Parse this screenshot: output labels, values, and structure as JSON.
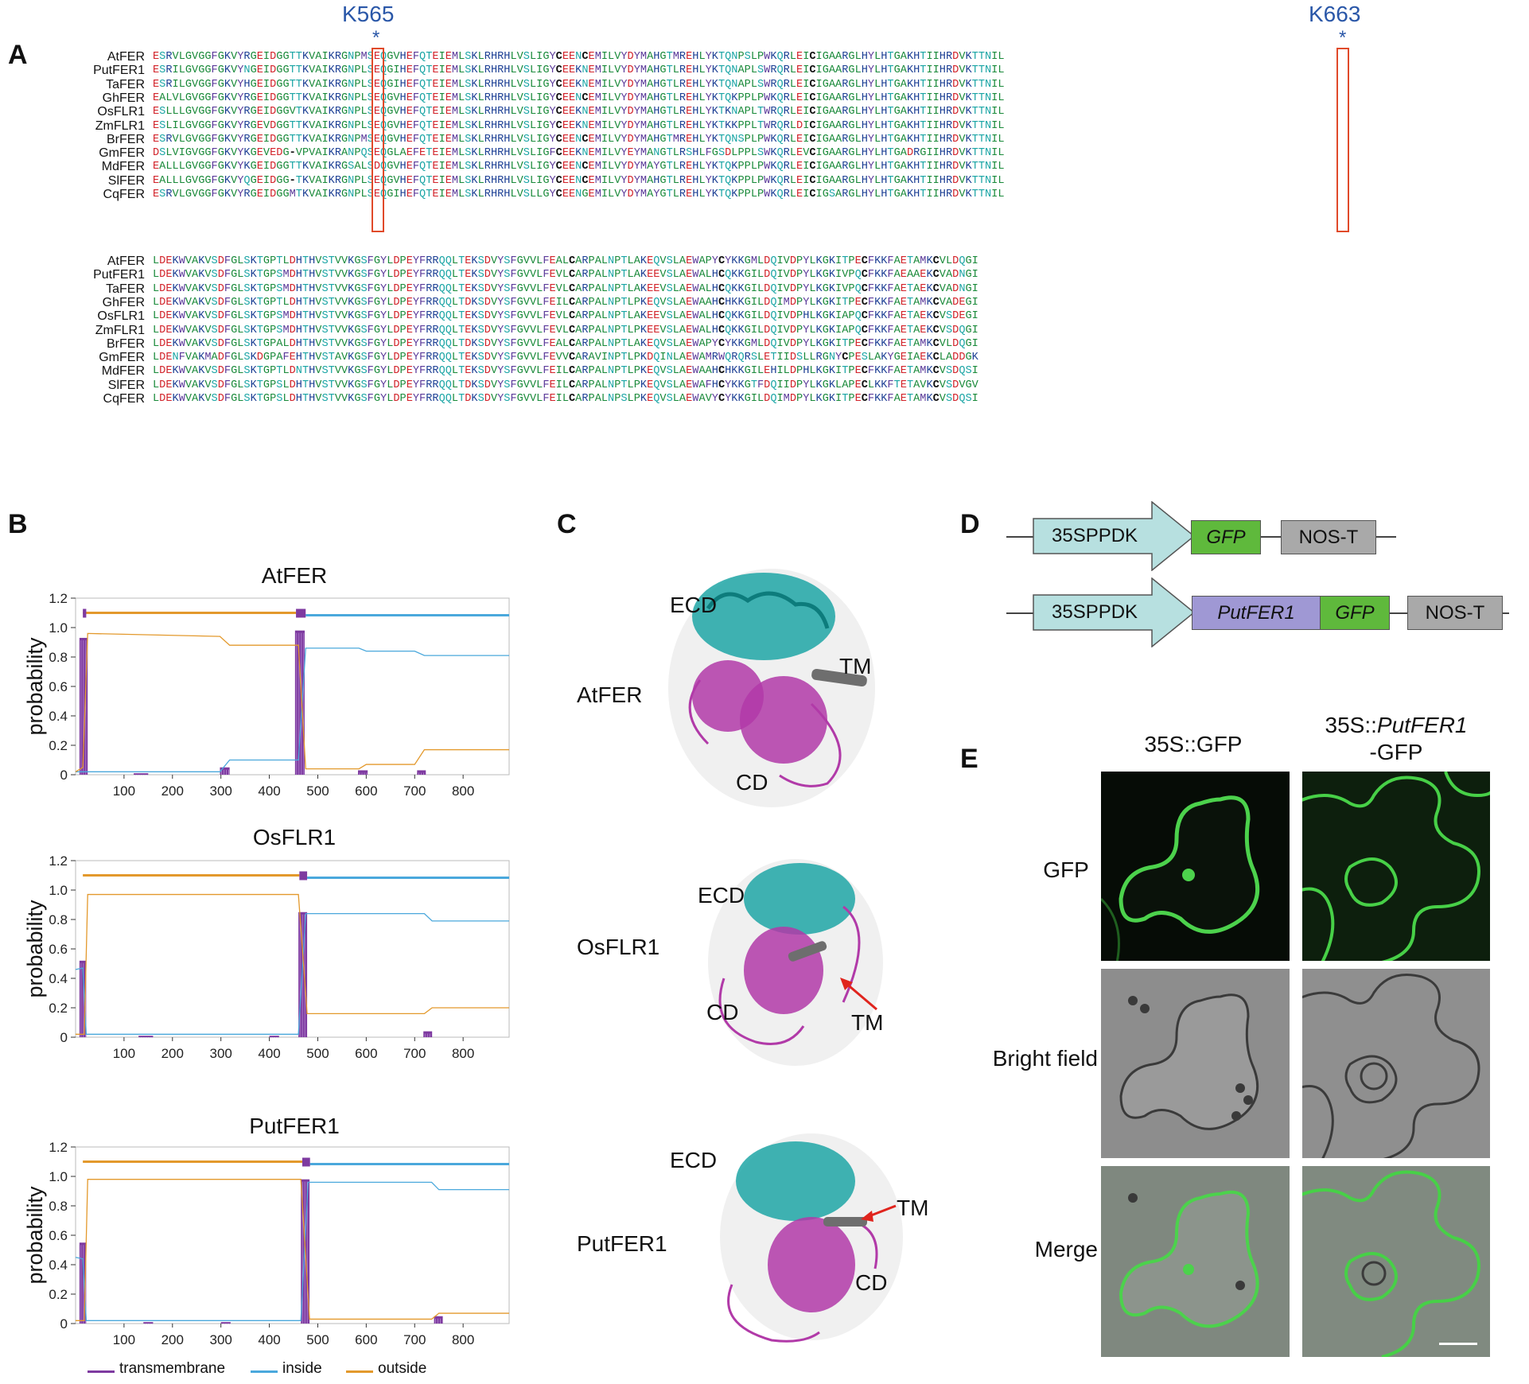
{
  "panels": {
    "A": "A",
    "B": "B",
    "C": "C",
    "D": "D",
    "E": "E"
  },
  "alignment": {
    "sites": [
      {
        "label": "K565",
        "star": "*"
      },
      {
        "label": "K663",
        "star": "*"
      }
    ],
    "block1": [
      {
        "name": "AtFER",
        "seq": "ESRVLGVGGFGKVYRGEIDGGTTKVAIKRGNPMSEQGVHEFQTEIEMLSKLRHRHLVSLIGYCEENCEMILVYDYMAHGTMREHLYKTQNPSLPWKQRLEICIGAARGLHYLHTGAKHTIIHRDVKTTNIL"
      },
      {
        "name": "PutFER1",
        "seq": "ESRILGVGGFGKVYNGEIDGGTTKVAIKRGNPLSEQGIHEFQTEIEMLSKLRHRHLVSLIGYCEEKNEMILVYDYMAHGTLREHLYKTQNAPLSWRQRLEICIGAARGLHYLHTGAKHTIIHRDVKTTNIL"
      },
      {
        "name": "TaFER",
        "seq": "ESRILGVGGFGKVYHGEIDGGTTKVAIKRGNPLSEQGIHEFQTEIEMLSKLRHRHLVSLIGYCEEKNEMILVYDYMAHGTLREHLYKTQNAPLSWRQRLEICIGAARGLHYLHTGAKHTIIHRDVKTTNIL"
      },
      {
        "name": "GhFER",
        "seq": "EALVLGVGGFGKVYRGEIDGGTTKVAIKRGNPLSEQGVHEFQTEIEMLSKLRHRHLVSLIGYCEENCEMILVYDYMAHGTLREHLYKTQKPPLPWKQRLEICIGAARGLHYLHTGAKHTIIHRDVKTTNIL"
      },
      {
        "name": "OsFLR1",
        "seq": "ESLLLGVGGFGKVYRGEIDGGVTKVAIKRGNPLSEQGVHEFQTEIEMLSKLRHRHLVSLIGYCEEKNEMILVYDYMAHGTLREHLYKTKNAPLTWRQRLEICIGAARGLHYLHTGAKHTIIHRDVKTTNIL"
      },
      {
        "name": "ZmFLR1",
        "seq": "ESLILGVGGFGKVYRGEVDGGTTKVAIKRGNPLSEQGVHEFQTEIEMLSKLRHRHLVSLIGYCEEKNEMILVYDYMAHGTLREHLYKTKKPPLTWRQRLDICIGAARGLHYLHTGAKHTIIHRDVKTTNIL"
      },
      {
        "name": "BrFER",
        "seq": "ESRVLGVGGFGKVYRGEIDGGTTKVAIKRGNPMSEQGVHEFQTEIEMLSKLRHRHLVSLIGYCEENCEMILVYDYMAHGTMREHLYKTQNSPLPWKQRLEICIGAARGLHYLHTGAKHTIIHRDVKTTNIL"
      },
      {
        "name": "GmFER",
        "seq": "DSLVIGVGGFGKVYKGEVEDG-VPVAIKRANPQSEQGLAEFETEIEMLSKLRHRHLVSLIGFCEEKNEMILVYEYMANGTLRSHLFGSDLPPLSWKQRLEVCIGAARGLHYLHTGADRGIIHRDVKTTNIL"
      },
      {
        "name": "MdFER",
        "seq": "EALLLGVGGFGKVYKGEIDGGTTKVAIKRGSALSDQGVHEFQTEIEMLSKLRHRHLVSLIGYCEENCEMILVYDYMAYGTLREHLYKTQKPPLPWKQRLEICIGAARGLHYLHTGAKHTIIHRDVKTTNIL"
      },
      {
        "name": "SlFER",
        "seq": "EALLLGVGGFGKVYQGEIDGG-TKVAIKRGNPLSEQGVHEFQTEIEMLSKLRHRHLVSLIGYCEENCEMILVYDYMAHGTLREHLYKTQKPPLPWKQRLEICIGAARGLHYLHTGAKHTIIHRDVKTTNIL"
      },
      {
        "name": "CqFER",
        "seq": "ESRVLGVGGFGKVYRGEIDGGMTKVAIKRGNPLSEQGIHEFQTEIEMLSKLRHRHLVSLLGYCEENGEMILVYDYMAYGTLREHLYKTQKPPLPWKQRLEICIGSARGLHYLHTGAKHTIIHRDVKTTNIL"
      }
    ],
    "block2": [
      {
        "name": "AtFER",
        "seq": "LDEKWVAKVSDFGLSKTGPTLDHTHVSTVVKGSFGYLDPEYFRRQQLTEKSDVYSFGVVLFEALCARPALNPTLAKEQVSLAEWAPYCYKKGMLDQIVDPYLKGKITPECFKKFAETAMKCVLDQGI"
      },
      {
        "name": "PutFER1",
        "seq": "LDEKWVAKVSDFGLSKTGPSMDHTHVSTVVKGSFGYLDPEYFRRQQLTEKSDVYSFGVVLFEVLCARPALNPTLAKEEVSLAEWALHCQKKGILDQIVDPYLKGKIVPQCFKKFAEAAEKCVADNGI"
      },
      {
        "name": "TaFER",
        "seq": "LDEKWVAKVSDFGLSKTGPSMDHTHVSTVVKGSFGYLDPEYFRRQQLTEKSDVYSFGVVLFEVLCARPALNPTLAKEEVSLAEWALHCQKKGILDQIVDPYLKGKIVPQCFKKFAETAEKCVADNGI"
      },
      {
        "name": "GhFER",
        "seq": "LDEKWVAKVSDFGLSKTGPTLDHTHVSTVVKGSFGYLDPEYFRRQQLTDKSDVYSFGVVLFEILCARPALNPTLPKEQVSLAEWAAHCHKKGILDQIMDPYLKGKITPECFKKFAETAMKCVADEGI"
      },
      {
        "name": "OsFLR1",
        "seq": "LDEKWVAKVSDFGLSKTGPSMDHTHVSTVVKGSFGYLDPEYFRRQQLTEKSDVYSFGVVLFEVLCARPALNPTLAKEEVSLAEWALHCQKKGILDQIVDPHLKGKIAPQCFKKFAETAEKCVSDEGI"
      },
      {
        "name": "ZmFLR1",
        "seq": "LDEKWVAKVSDFGLSKTGPSMDHTHVSTVVKGSFGYLDPEYFRRQQLTEKSDVYSFGVVLFEVLCARPALNPTLPKEEVSLAEWALHCQKKGILDQIVDPYLKGKIAPQCFKKFAETAEKCVSDQGI"
      },
      {
        "name": "BrFER",
        "seq": "LDEKWVAKVSDFGLSKTGPALDHTHVSTVVKGSFGYLDPEYFRRQQLTDKSDVYSFGVVLFEALCARPALNPTLAKEQVSLAEWAPYCYKKGMLDQIVDPYLKGKITPECFKKFAETAMKCVLDQGI"
      },
      {
        "name": "GmFER",
        "seq": "LDENFVAKMADFGLSKDGPAFEHTHVSTAVKGSFGYLDPEYFRRQQLTEKSDVYSFGVVLFEVVCARAVINPTLPKDQINLAEWAMRWQRQRSLETIIDSLLRGNYCPESLAKYGEIAEKCLADDGK"
      },
      {
        "name": "MdFER",
        "seq": "LDEKWVAKVSDFGLSKTGPTLDNTHVSTVVKGSFGYLDPEYFRRQQLTEKSDVYSFGVVLFEILCARPALNPTLPKEQVSLAEWAAHCHKKGILEHILDPHLKGKITPECFKKFAETAMKCVSDQSI"
      },
      {
        "name": "SlFER",
        "seq": "LDEKWVAKVSDFGLSKTGPSLDHTHVSTVVKGSFGYLDPEYFRRQQLTDKSDVYSFGVVLFEILCARPALNPTLPKEQVSLAEWAFHCYKKGTFDQIIDPYLKGKLAPECLKKFTETAVKCVSDVGV"
      },
      {
        "name": "CqFER",
        "seq": "LDEKWVAKVSDFGLSKTGPSLDHTHVSTVVKGSFGYLDPEYFRRQQLTDKSDVYSFGVVLFEILCARPALNPSLPKEQVSLAEWAVYCYKKGILDQIMDPYLKGKITPECFKKFAETAMKCVSDQSI"
      }
    ]
  },
  "panel_b": {
    "chart_data": [
      {
        "type": "line",
        "title": "AtFER",
        "ylabel": "probability",
        "ylim": [
          0,
          1.2
        ],
        "xticks": [
          100,
          200,
          300,
          400,
          500,
          600,
          700,
          800
        ],
        "yticks": [
          0,
          0.2,
          0.4,
          0.6,
          0.8,
          1.0,
          1.2
        ],
        "xlim": [
          0,
          895
        ],
        "tm_bars": [
          [
            8,
            25,
            0.93
          ],
          [
            453,
            473,
            0.98
          ],
          [
            298,
            318,
            0.05
          ],
          [
            583,
            603,
            0.03
          ],
          [
            705,
            723,
            0.03
          ],
          [
            120,
            150,
            0.01
          ]
        ],
        "tm_segments": [
          [
            15,
            22
          ],
          [
            455,
            475
          ]
        ],
        "inside_line": [
          [
            0,
            0.02
          ],
          [
            298,
            0.02
          ],
          [
            318,
            0.1
          ],
          [
            460,
            0.1
          ],
          [
            475,
            0.86
          ],
          [
            585,
            0.86
          ],
          [
            600,
            0.84
          ],
          [
            700,
            0.84
          ],
          [
            720,
            0.81
          ],
          [
            895,
            0.81
          ]
        ],
        "outside_line": [
          [
            0,
            0.02
          ],
          [
            15,
            0.05
          ],
          [
            25,
            0.96
          ],
          [
            298,
            0.94
          ],
          [
            318,
            0.88
          ],
          [
            460,
            0.88
          ],
          [
            475,
            0.04
          ],
          [
            585,
            0.04
          ],
          [
            600,
            0.07
          ],
          [
            700,
            0.07
          ],
          [
            720,
            0.17
          ],
          [
            895,
            0.17
          ]
        ]
      },
      {
        "type": "line",
        "title": "OsFLR1",
        "ylabel": "probability",
        "ylim": [
          0,
          1.2
        ],
        "xticks": [
          100,
          200,
          300,
          400,
          500,
          600,
          700,
          800
        ],
        "yticks": [
          0,
          0.2,
          0.4,
          0.6,
          0.8,
          1.0,
          1.2
        ],
        "xlim": [
          0,
          895
        ],
        "tm_bars": [
          [
            8,
            22,
            0.52
          ],
          [
            460,
            478,
            0.85
          ],
          [
            718,
            736,
            0.04
          ],
          [
            130,
            160,
            0.01
          ],
          [
            400,
            420,
            0.01
          ]
        ],
        "tm_segments": [
          [
            462,
            478
          ]
        ],
        "inside_line": [
          [
            0,
            0.46
          ],
          [
            15,
            0.47
          ],
          [
            22,
            0.02
          ],
          [
            460,
            0.02
          ],
          [
            475,
            0.84
          ],
          [
            720,
            0.84
          ],
          [
            736,
            0.79
          ],
          [
            895,
            0.79
          ]
        ],
        "outside_line": [
          [
            0,
            0.02
          ],
          [
            18,
            0.02
          ],
          [
            25,
            0.97
          ],
          [
            460,
            0.97
          ],
          [
            478,
            0.16
          ],
          [
            720,
            0.16
          ],
          [
            736,
            0.2
          ],
          [
            895,
            0.2
          ]
        ]
      },
      {
        "type": "line",
        "title": "PutFER1",
        "ylabel": "probability",
        "ylim": [
          0,
          1.2
        ],
        "xticks": [
          100,
          200,
          300,
          400,
          500,
          600,
          700,
          800
        ],
        "yticks": [
          0,
          0.2,
          0.4,
          0.6,
          0.8,
          1.0,
          1.2
        ],
        "xlim": [
          0,
          895
        ],
        "tm_bars": [
          [
            8,
            22,
            0.55
          ],
          [
            465,
            483,
            0.98
          ],
          [
            740,
            758,
            0.05
          ],
          [
            300,
            320,
            0.01
          ],
          [
            140,
            160,
            0.01
          ]
        ],
        "tm_segments": [
          [
            468,
            484
          ]
        ],
        "inside_line": [
          [
            0,
            0.45
          ],
          [
            15,
            0.44
          ],
          [
            22,
            0.02
          ],
          [
            465,
            0.02
          ],
          [
            480,
            0.96
          ],
          [
            735,
            0.96
          ],
          [
            750,
            0.91
          ],
          [
            895,
            0.91
          ]
        ],
        "outside_line": [
          [
            0,
            0.02
          ],
          [
            18,
            0.02
          ],
          [
            25,
            0.98
          ],
          [
            465,
            0.98
          ],
          [
            483,
            0.03
          ],
          [
            735,
            0.03
          ],
          [
            750,
            0.07
          ],
          [
            895,
            0.07
          ]
        ]
      }
    ],
    "legend": [
      {
        "label": "transmembrane",
        "color": "#7e3aa0"
      },
      {
        "label": "inside",
        "color": "#4aa8dc"
      },
      {
        "label": "outside",
        "color": "#e3992c"
      }
    ]
  },
  "panel_c": {
    "structures": [
      {
        "name": "AtFER",
        "ecd": "ECD",
        "tm": "TM",
        "cd": "CD"
      },
      {
        "name": "OsFLR1",
        "ecd": "ECD",
        "tm": "TM",
        "cd": "CD"
      },
      {
        "name": "PutFER1",
        "ecd": "ECD",
        "tm": "TM",
        "cd": "CD"
      }
    ]
  },
  "panel_d": {
    "construct1": {
      "promoter": "35SPPDK",
      "gene": "GFP",
      "terminator": "NOS-T"
    },
    "construct2": {
      "promoter": "35SPPDK",
      "gene": "PutFER1",
      "tag": "GFP",
      "terminator": "NOS-T"
    },
    "colors": {
      "promoter": "#b7e0e0",
      "gfp": "#5fb93c",
      "putfer1": "#9f98d4",
      "nos": "#a9a9a9"
    }
  },
  "panel_e": {
    "col1": "35S::GFP",
    "col2_prefix": "35S::",
    "col2_gene": "PutFER1",
    "col2_suffix": "-GFP",
    "rows": [
      "GFP",
      "Bright field",
      "Merge"
    ]
  }
}
